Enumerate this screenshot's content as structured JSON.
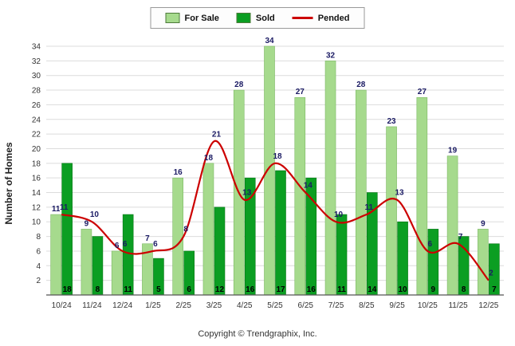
{
  "chart_data": {
    "type": "bar",
    "title": "",
    "xlabel": "",
    "ylabel": "Number of Homes",
    "ylim": [
      0,
      34
    ],
    "ytick_step": 2,
    "grid": true,
    "legend_position": "top-center",
    "categories": [
      "10/24",
      "11/24",
      "12/24",
      "1/25",
      "2/25",
      "3/25",
      "4/25",
      "5/25",
      "6/25",
      "7/25",
      "8/25",
      "9/25",
      "10/25",
      "11/25",
      "12/25"
    ],
    "series": [
      {
        "name": "For Sale",
        "type": "bar",
        "color": "#a6da8d",
        "edge_color": "#7cb863",
        "values": [
          11,
          9,
          6,
          7,
          16,
          18,
          28,
          34,
          27,
          32,
          28,
          23,
          27,
          19,
          9
        ]
      },
      {
        "name": "Sold",
        "type": "bar",
        "color": "#0b9e22",
        "edge_color": "#077514",
        "values": [
          18,
          8,
          11,
          5,
          6,
          12,
          16,
          17,
          16,
          11,
          14,
          10,
          9,
          8,
          7
        ]
      },
      {
        "name": "Pended",
        "type": "line",
        "color": "#cc0000",
        "edge_color": "#cc0000",
        "values": [
          11,
          10,
          6,
          6,
          8,
          21,
          13,
          18,
          14,
          10,
          11,
          13,
          6,
          7,
          2
        ]
      }
    ],
    "label_colors": {
      "for_sale": "#1b1b64",
      "sold": "#000000",
      "pended": "#1b1b64"
    },
    "axis_color": "#555555",
    "gridline_color": "#dcdcdc",
    "tick_label_color": "#333333"
  },
  "footer": {
    "copyright": "Copyright © Trendgraphix, Inc."
  }
}
